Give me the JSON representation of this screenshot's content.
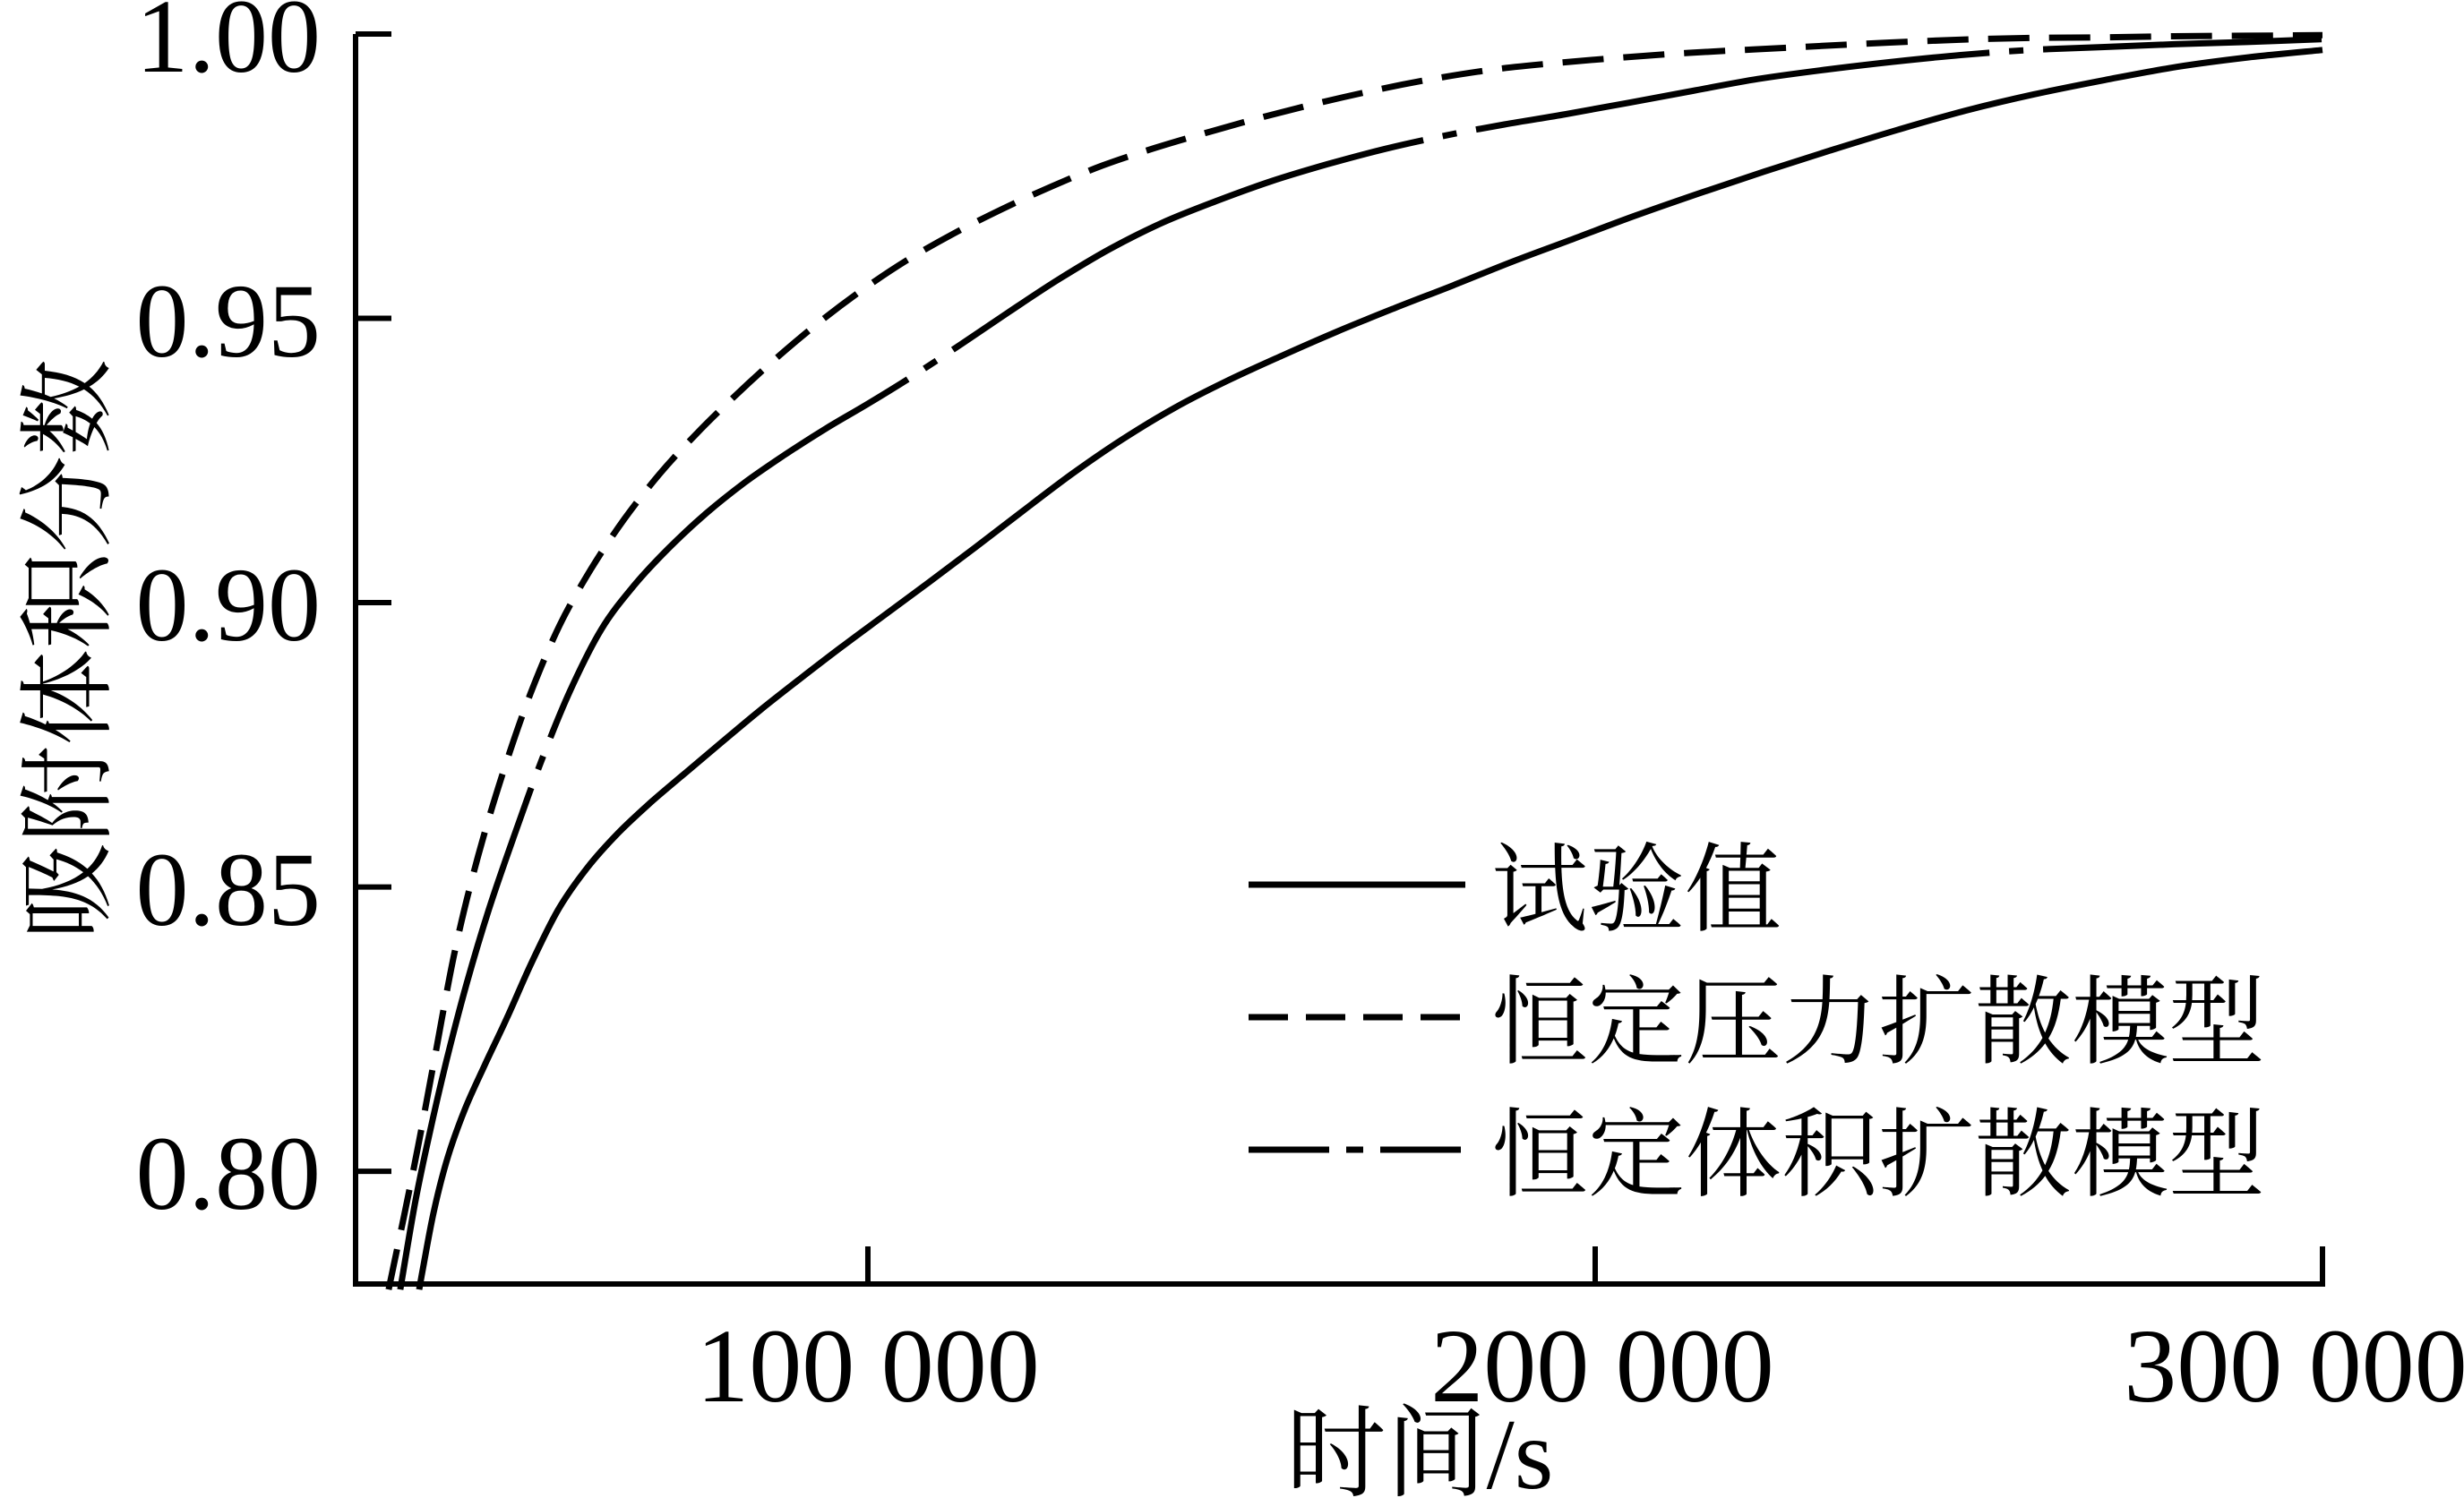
{
  "figure": {
    "background_color": "#ffffff",
    "ink_color": "#000000"
  },
  "chart_data": {
    "type": "line",
    "title": "",
    "xlabel": "时间/s",
    "ylabel": "吸附体积分数",
    "xlim": [
      29560,
      300000
    ],
    "ylim": [
      0.7797,
      1.0
    ],
    "grid": false,
    "legend_position": "inside lower right",
    "x_ticks": [
      {
        "value": 100000,
        "label": "100 000"
      },
      {
        "value": 200000,
        "label": "200 000"
      },
      {
        "value": 300000,
        "label": "300 000"
      }
    ],
    "y_ticks": [
      {
        "value": 0.8,
        "label": "0.80"
      },
      {
        "value": 0.85,
        "label": "0.85"
      },
      {
        "value": 0.9,
        "label": "0.90"
      },
      {
        "value": 0.95,
        "label": "0.95"
      },
      {
        "value": 1.0,
        "label": "1.00"
      }
    ],
    "series": [
      {
        "name": "试验值",
        "line_style": "solid",
        "points": [
          [
            38300,
            0.7792
          ],
          [
            38990,
            0.7841
          ],
          [
            40380,
            0.7933
          ],
          [
            42290,
            0.8027
          ],
          [
            44620,
            0.811
          ],
          [
            47330,
            0.8187
          ],
          [
            50390,
            0.827
          ],
          [
            53770,
            0.8367
          ],
          [
            57460,
            0.8461
          ],
          [
            61430,
            0.8534
          ],
          [
            65680,
            0.8595
          ],
          [
            70180,
            0.8649
          ],
          [
            74950,
            0.8701
          ],
          [
            79950,
            0.8755
          ],
          [
            85200,
            0.8811
          ],
          [
            90670,
            0.8866
          ],
          [
            96370,
            0.8922
          ],
          [
            102280,
            0.8978
          ],
          [
            108410,
            0.9036
          ],
          [
            114750,
            0.9097
          ],
          [
            121280,
            0.9161
          ],
          [
            128020,
            0.9226
          ],
          [
            134960,
            0.9287
          ],
          [
            142080,
            0.9342
          ],
          [
            149390,
            0.939
          ],
          [
            156890,
            0.9434
          ],
          [
            164570,
            0.9477
          ],
          [
            172430,
            0.9518
          ],
          [
            180470,
            0.9558
          ],
          [
            188680,
            0.96
          ],
          [
            197060,
            0.964
          ],
          [
            205610,
            0.9681
          ],
          [
            214330,
            0.972
          ],
          [
            223220,
            0.9758
          ],
          [
            232260,
            0.9795
          ],
          [
            241470,
            0.9831
          ],
          [
            250840,
            0.9865
          ],
          [
            260360,
            0.9894
          ],
          [
            270040,
            0.9919
          ],
          [
            279880,
            0.9942
          ],
          [
            289860,
            0.9959
          ],
          [
            300000,
            0.9972
          ]
        ]
      },
      {
        "name": "恒定压力扩散模型",
        "line_style": "dashed",
        "points": [
          [
            34110,
            0.7792
          ],
          [
            34810,
            0.7835
          ],
          [
            36230,
            0.7922
          ],
          [
            38160,
            0.8044
          ],
          [
            40530,
            0.8206
          ],
          [
            43290,
            0.8392
          ],
          [
            46400,
            0.8554
          ],
          [
            49830,
            0.8701
          ],
          [
            53580,
            0.8839
          ],
          [
            57610,
            0.896
          ],
          [
            61930,
            0.9059
          ],
          [
            66510,
            0.9147
          ],
          [
            71350,
            0.9226
          ],
          [
            76430,
            0.9297
          ],
          [
            81760,
            0.9364
          ],
          [
            87320,
            0.9429
          ],
          [
            93110,
            0.9491
          ],
          [
            99120,
            0.9549
          ],
          [
            105350,
            0.9602
          ],
          [
            111780,
            0.9649
          ],
          [
            118430,
            0.9692
          ],
          [
            125270,
            0.9732
          ],
          [
            132310,
            0.9769
          ],
          [
            139550,
            0.98
          ],
          [
            146980,
            0.9828
          ],
          [
            154600,
            0.9855
          ],
          [
            162410,
            0.988
          ],
          [
            170390,
            0.9903
          ],
          [
            178560,
            0.9923
          ],
          [
            186900,
            0.9939
          ],
          [
            195410,
            0.995
          ],
          [
            204100,
            0.9959
          ],
          [
            212960,
            0.9967
          ],
          [
            221990,
            0.9973
          ],
          [
            231180,
            0.9979
          ],
          [
            240530,
            0.9985
          ],
          [
            250050,
            0.999
          ],
          [
            259730,
            0.9993
          ],
          [
            269560,
            0.9994
          ],
          [
            279550,
            0.9996
          ],
          [
            289700,
            0.9997
          ],
          [
            300000,
            0.9998
          ]
        ]
      },
      {
        "name": "恒定体积扩散模型",
        "line_style": "dashdot",
        "points": [
          [
            35710,
            0.7792
          ],
          [
            36410,
            0.7846
          ],
          [
            37820,
            0.795
          ],
          [
            39740,
            0.8067
          ],
          [
            42090,
            0.8196
          ],
          [
            44830,
            0.833
          ],
          [
            47920,
            0.8462
          ],
          [
            51330,
            0.8589
          ],
          [
            55050,
            0.872
          ],
          [
            59060,
            0.8845
          ],
          [
            63350,
            0.8953
          ],
          [
            67900,
            0.9031
          ],
          [
            72710,
            0.9097
          ],
          [
            77760,
            0.9157
          ],
          [
            83050,
            0.9211
          ],
          [
            88580,
            0.926
          ],
          [
            94330,
            0.9307
          ],
          [
            100300,
            0.9352
          ],
          [
            106480,
            0.9401
          ],
          [
            112880,
            0.9455
          ],
          [
            119480,
            0.9512
          ],
          [
            126280,
            0.9569
          ],
          [
            133280,
            0.9622
          ],
          [
            140470,
            0.9668
          ],
          [
            147850,
            0.9706
          ],
          [
            155420,
            0.9741
          ],
          [
            163170,
            0.9771
          ],
          [
            171110,
            0.9798
          ],
          [
            179220,
            0.9821
          ],
          [
            187510,
            0.9841
          ],
          [
            195970,
            0.9859
          ],
          [
            204600,
            0.9879
          ],
          [
            213400,
            0.99
          ],
          [
            222370,
            0.9921
          ],
          [
            231500,
            0.9937
          ],
          [
            240800,
            0.9951
          ],
          [
            250250,
            0.9963
          ],
          [
            259860,
            0.9972
          ],
          [
            269640,
            0.9977
          ],
          [
            279560,
            0.9982
          ],
          [
            289640,
            0.9986
          ],
          [
            299880,
            0.9991
          ]
        ]
      }
    ]
  }
}
